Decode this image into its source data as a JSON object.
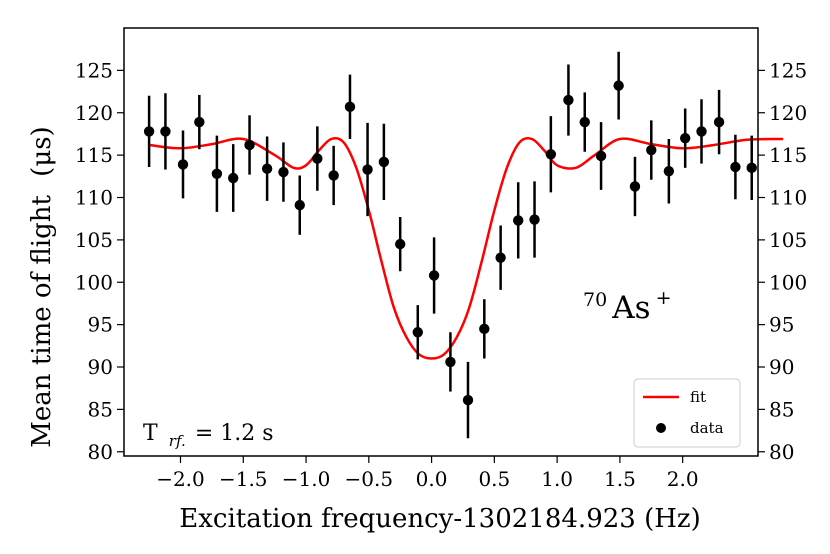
{
  "chart_data": {
    "type": "scatter",
    "title": "",
    "xlabel": "Excitation frequency-1302184.923 (Hz)",
    "ylabel_text": "Mean time of flight",
    "ylabel_unit": "(μs)",
    "xlim": [
      -2.45,
      2.6
    ],
    "ylim": [
      79.5,
      130
    ],
    "x_ticks": [
      -2.0,
      -1.5,
      -1.0,
      -0.5,
      0.0,
      0.5,
      1.0,
      1.5,
      2.0
    ],
    "x_tick_labels": [
      "−2.0",
      "−1.5",
      "−1.0",
      "−0.5",
      "0.0",
      "0.5",
      "1.0",
      "1.5",
      "2.0"
    ],
    "y_ticks": [
      80,
      85,
      90,
      95,
      100,
      105,
      110,
      115,
      120,
      125
    ],
    "y_tick_labels": [
      "80",
      "85",
      "90",
      "95",
      "100",
      "105",
      "110",
      "115",
      "120",
      "125"
    ],
    "series": [
      {
        "name": "data",
        "kind": "errorbar-scatter",
        "color": "#000000",
        "points": [
          {
            "x": -2.25,
            "y": 117.8,
            "err": 4.2
          },
          {
            "x": -2.12,
            "y": 117.8,
            "err": 4.5
          },
          {
            "x": -1.98,
            "y": 113.9,
            "err": 4.0
          },
          {
            "x": -1.85,
            "y": 118.9,
            "err": 3.2
          },
          {
            "x": -1.71,
            "y": 112.8,
            "err": 4.5
          },
          {
            "x": -1.58,
            "y": 112.3,
            "err": 4.0
          },
          {
            "x": -1.45,
            "y": 116.2,
            "err": 3.5
          },
          {
            "x": -1.31,
            "y": 113.4,
            "err": 3.8
          },
          {
            "x": -1.18,
            "y": 113.0,
            "err": 3.5
          },
          {
            "x": -1.05,
            "y": 109.1,
            "err": 3.5
          },
          {
            "x": -0.91,
            "y": 114.6,
            "err": 3.8
          },
          {
            "x": -0.78,
            "y": 112.6,
            "err": 3.5
          },
          {
            "x": -0.65,
            "y": 120.7,
            "err": 3.8
          },
          {
            "x": -0.51,
            "y": 113.3,
            "err": 5.5
          },
          {
            "x": -0.38,
            "y": 114.2,
            "err": 4.5
          },
          {
            "x": -0.25,
            "y": 104.5,
            "err": 3.2
          },
          {
            "x": -0.11,
            "y": 94.1,
            "err": 3.2
          },
          {
            "x": 0.02,
            "y": 100.8,
            "err": 4.5
          },
          {
            "x": 0.15,
            "y": 90.6,
            "err": 3.5
          },
          {
            "x": 0.29,
            "y": 86.1,
            "err": 4.5
          },
          {
            "x": 0.42,
            "y": 94.5,
            "err": 3.5
          },
          {
            "x": 0.55,
            "y": 102.9,
            "err": 3.8
          },
          {
            "x": 0.69,
            "y": 107.3,
            "err": 4.5
          },
          {
            "x": 0.82,
            "y": 107.4,
            "err": 4.5
          },
          {
            "x": 0.95,
            "y": 115.1,
            "err": 4.5
          },
          {
            "x": 1.09,
            "y": 121.5,
            "err": 4.2
          },
          {
            "x": 1.22,
            "y": 118.9,
            "err": 3.5
          },
          {
            "x": 1.35,
            "y": 114.9,
            "err": 4.0
          },
          {
            "x": 1.49,
            "y": 123.2,
            "err": 4.0
          },
          {
            "x": 1.62,
            "y": 111.3,
            "err": 3.5
          },
          {
            "x": 1.75,
            "y": 115.6,
            "err": 3.5
          },
          {
            "x": 1.89,
            "y": 113.1,
            "err": 3.8
          },
          {
            "x": 2.02,
            "y": 117.0,
            "err": 3.5
          },
          {
            "x": 2.15,
            "y": 117.8,
            "err": 3.8
          },
          {
            "x": 2.29,
            "y": 118.9,
            "err": 3.8
          },
          {
            "x": 2.42,
            "y": 113.6,
            "err": 3.8
          },
          {
            "x": 2.55,
            "y": 113.5,
            "err": 3.8
          }
        ]
      },
      {
        "name": "fit",
        "kind": "line",
        "color": "#ff0000",
        "x": [
          -2.25,
          -2.0,
          -1.75,
          -1.5,
          -1.25,
          -1.1,
          -1.0,
          -0.9,
          -0.8,
          -0.7,
          -0.6,
          -0.5,
          -0.4,
          -0.3,
          -0.2,
          -0.1,
          0.0,
          0.1,
          0.2,
          0.3,
          0.4,
          0.5,
          0.6,
          0.7,
          0.8,
          0.9,
          1.0,
          1.15,
          1.3,
          1.5,
          1.75,
          2.0,
          2.25,
          2.5,
          2.7,
          2.8
        ],
        "y": [
          116.2,
          115.8,
          116.3,
          116.9,
          115.0,
          113.5,
          113.8,
          115.5,
          116.9,
          116.5,
          113.5,
          108.5,
          102.5,
          97.0,
          93.5,
          91.5,
          91.0,
          91.5,
          93.5,
          97.0,
          102.5,
          108.5,
          113.5,
          116.5,
          116.9,
          115.5,
          113.8,
          113.5,
          115.0,
          116.9,
          116.3,
          115.8,
          116.2,
          116.8,
          116.9,
          116.9
        ]
      }
    ],
    "legend": {
      "position": "lower-right",
      "entries": [
        {
          "label": "fit",
          "kind": "line",
          "color": "#ff0000"
        },
        {
          "label": "data",
          "kind": "marker",
          "color": "#000000"
        }
      ]
    },
    "annotations": {
      "isotope_mass": "70",
      "isotope_symbol": "As",
      "isotope_charge": "+",
      "trf_label": "T",
      "trf_subscript": "rf.",
      "trf_value": "= 1.2 s"
    },
    "ticks_both_sides_y": true
  }
}
